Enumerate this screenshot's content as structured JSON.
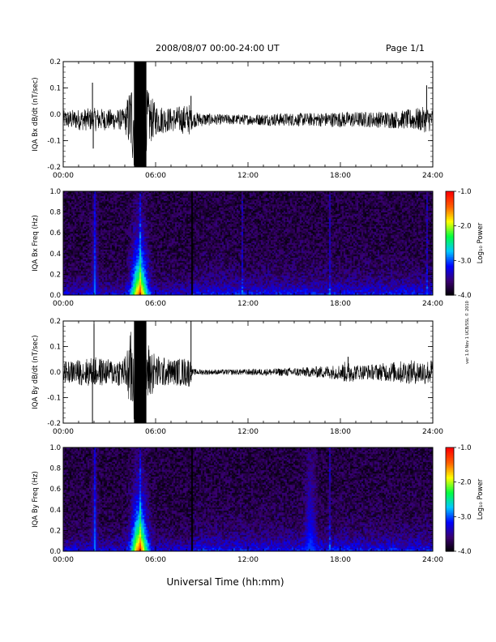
{
  "header": {
    "title": "2008/08/07  00:00-24:00 UT",
    "page": "Page 1/1"
  },
  "footer": {
    "xlabel": "Universal Time (hh:mm)",
    "side_note": "ver 1.0 Nov 1 UCB/SSL © 2010"
  },
  "time_ticks": [
    "00:00",
    "06:00",
    "12:00",
    "18:00",
    "24:00"
  ],
  "colorbar": {
    "label": "Log₁₀ Power",
    "ticks": [
      "-1.0",
      "-2.0",
      "-3.0",
      "-4.0"
    ],
    "range": [
      -4.0,
      -1.0
    ],
    "colormap": [
      "#000000",
      "#3a0070",
      "#0000ff",
      "#00c8ff",
      "#00ff40",
      "#ffff00",
      "#ff6000",
      "#ff0000"
    ]
  },
  "chart_data": [
    {
      "type": "line",
      "ylabel": "IQA Bx dB/dt (nT/sec)",
      "xlim": [
        0,
        24
      ],
      "ylim": [
        -0.2,
        0.2
      ],
      "yticks": [
        "0.2",
        "0.1",
        "0.0",
        "-0.1",
        "-0.2"
      ],
      "baseline": -0.02,
      "envelope_x": [
        0,
        1,
        2,
        3,
        4,
        4.6,
        5.0,
        5.4,
        6,
        7,
        8.2,
        8.4,
        10,
        12,
        14,
        16,
        18,
        20,
        22,
        23.6,
        24
      ],
      "envelope_amp": [
        0.035,
        0.04,
        0.045,
        0.04,
        0.04,
        0.2,
        0.2,
        0.12,
        0.06,
        0.045,
        0.06,
        0.03,
        0.02,
        0.02,
        0.025,
        0.025,
        0.03,
        0.03,
        0.035,
        0.05,
        0.04
      ],
      "spikes": [
        [
          1.9,
          0.12
        ],
        [
          1.95,
          -0.13
        ],
        [
          8.3,
          0.07
        ],
        [
          23.6,
          0.11
        ]
      ]
    },
    {
      "type": "heatmap",
      "ylabel": "IQA Bx Freq (Hz)",
      "xlim": [
        0,
        24
      ],
      "ylim": [
        0.0,
        1.0
      ],
      "yticks": [
        "1.0",
        "0.8",
        "0.6",
        "0.4",
        "0.2",
        "0.0"
      ],
      "z_range": [
        -4.0,
        -1.0
      ],
      "bursts": [
        [
          4.9,
          0.5,
          0.06,
          -1.4
        ],
        [
          2.0,
          0.2,
          0.5,
          -3.2
        ]
      ],
      "dark_lines": [
        8.3
      ],
      "bright_lines": [
        2.0,
        4.9,
        11.0,
        11.6,
        17.3,
        23.6
      ]
    },
    {
      "type": "line",
      "ylabel": "IQA By dB/dt (nT/sec)",
      "xlim": [
        0,
        24
      ],
      "ylim": [
        -0.2,
        0.2
      ],
      "yticks": [
        "0.2",
        "0.1",
        "0.0",
        "-0.1",
        "-0.2"
      ],
      "baseline": 0.0,
      "envelope_x": [
        0,
        1,
        2,
        3,
        4,
        4.6,
        5.0,
        5.4,
        6,
        7,
        8.2,
        8.4,
        10,
        12,
        14,
        16,
        18,
        18.5,
        19,
        20,
        22,
        24
      ],
      "envelope_amp": [
        0.04,
        0.05,
        0.06,
        0.05,
        0.06,
        0.22,
        0.22,
        0.13,
        0.07,
        0.05,
        0.06,
        0.012,
        0.01,
        0.012,
        0.015,
        0.02,
        0.03,
        0.05,
        0.03,
        0.03,
        0.045,
        0.05
      ],
      "spikes": [
        [
          1.9,
          -0.2
        ],
        [
          2.0,
          0.19
        ],
        [
          8.3,
          0.2
        ],
        [
          18.5,
          0.06
        ]
      ]
    },
    {
      "type": "heatmap",
      "ylabel": "IQA By Freq (Hz)",
      "xlim": [
        0,
        24
      ],
      "ylim": [
        0.0,
        1.0
      ],
      "yticks": [
        "1.0",
        "0.8",
        "0.6",
        "0.4",
        "0.2",
        "0.0"
      ],
      "z_range": [
        -4.0,
        -1.0
      ],
      "bursts": [
        [
          4.9,
          0.5,
          0.06,
          -1.3
        ],
        [
          16.0,
          0.35,
          0.3,
          -3.0
        ],
        [
          2.0,
          0.2,
          0.5,
          -3.2
        ]
      ],
      "dark_lines": [
        8.3
      ],
      "bright_lines": [
        2.0,
        4.9,
        17.3
      ]
    }
  ]
}
